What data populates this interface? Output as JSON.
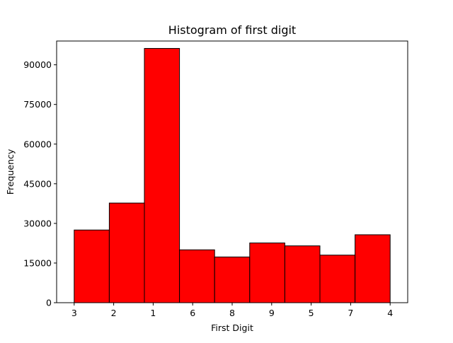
{
  "chart_data": {
    "type": "bar",
    "title": "Histogram of first digit",
    "xlabel": "First Digit",
    "ylabel": "Frequency",
    "categories": [
      "3",
      "2",
      "1",
      "6",
      "8",
      "9",
      "5",
      "7",
      "4"
    ],
    "values": [
      27500,
      37700,
      96200,
      20000,
      17300,
      22600,
      21500,
      18000,
      25700
    ],
    "ylim": [
      0,
      99000
    ],
    "yticks": [
      0,
      15000,
      30000,
      45000,
      60000,
      75000,
      90000
    ],
    "xticks": [
      {
        "label": "3",
        "pos": 0.0
      },
      {
        "label": "2",
        "pos": 1.125
      },
      {
        "label": "1",
        "pos": 2.25
      },
      {
        "label": "6",
        "pos": 3.375
      },
      {
        "label": "8",
        "pos": 4.5
      },
      {
        "label": "9",
        "pos": 5.625
      },
      {
        "label": "5",
        "pos": 6.75
      },
      {
        "label": "7",
        "pos": 7.875
      },
      {
        "label": "4",
        "pos": 9.0
      }
    ],
    "bar_color": "#ff0000",
    "edge_color": "#000000",
    "grid": false,
    "legend": "none"
  }
}
